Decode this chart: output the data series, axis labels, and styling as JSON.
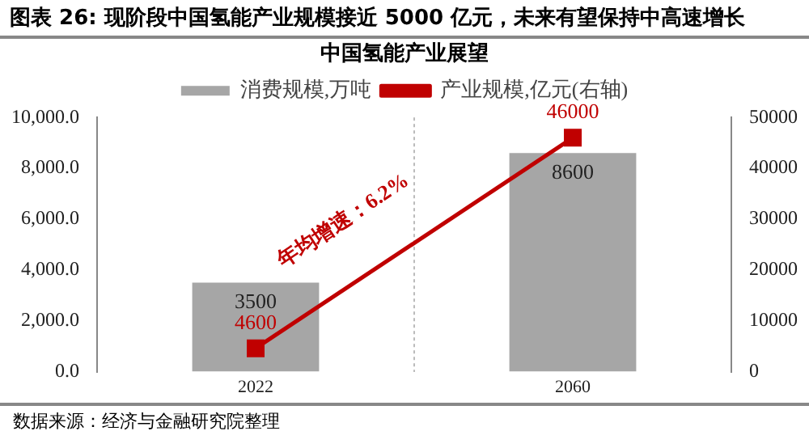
{
  "chart_data": {
    "type": "bar",
    "title": "图表 26:  现阶段中国氢能产业规模接近 5000 亿元，未来有望保持中高速增长",
    "subtitle": "中国氢能产业展望",
    "categories": [
      "2022",
      "2060"
    ],
    "series": [
      {
        "name": "消费规模,万吨",
        "color": "#a6a6a6",
        "values": [
          3500,
          8600
        ]
      },
      {
        "name": "产业规模,亿元(右轴)",
        "type": "line",
        "axis": "y2",
        "color": "#c00000",
        "values": [
          4600,
          46000
        ]
      }
    ],
    "ylim": [
      0,
      10000
    ],
    "yticks": [
      {
        "value": 0,
        "label": "0.0"
      },
      {
        "value": 2000,
        "label": "2,000.0"
      },
      {
        "value": 4000,
        "label": "4,000.0"
      },
      {
        "value": 6000,
        "label": "6,000.0"
      },
      {
        "value": 8000,
        "label": "8,000.0"
      },
      {
        "value": 10000,
        "label": "10,000.0"
      }
    ],
    "y2lim": [
      0,
      50000
    ],
    "y2ticks": [
      0,
      10000,
      20000,
      30000,
      40000,
      50000
    ],
    "data_labels": true,
    "marker": "square",
    "grid": "x",
    "legend": "top",
    "annotations": [
      "年均增速：6.2%",
      "数据来源：经济与金融研究院整理"
    ]
  }
}
